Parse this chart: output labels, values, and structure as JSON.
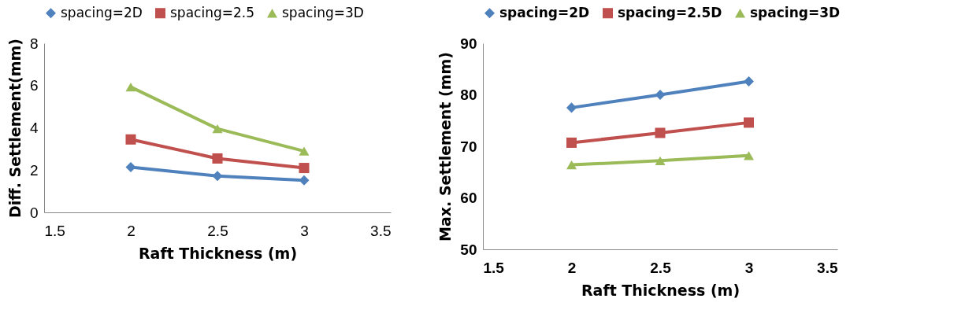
{
  "chart_data": [
    {
      "type": "line",
      "xlabel": "Raft Thickness (m)",
      "ylabel": "Diff. Settlement(mm)",
      "x": [
        2,
        2.5,
        3
      ],
      "xlim": [
        1.5,
        3.5
      ],
      "xticks": [
        1.5,
        2,
        2.5,
        3,
        3.5
      ],
      "ylim": [
        0,
        8
      ],
      "yticks": [
        0,
        2,
        4,
        6,
        8
      ],
      "grid": false,
      "legend": "top",
      "series": [
        {
          "name": "spacing=2D",
          "color": "#4f81bd",
          "marker": "diamond",
          "values": [
            2.14,
            1.72,
            1.52
          ]
        },
        {
          "name": "spacing=2.5",
          "color": "#c0504d",
          "marker": "square",
          "values": [
            3.45,
            2.55,
            2.1
          ]
        },
        {
          "name": "spacing=3D",
          "color": "#9bbb59",
          "marker": "triangle",
          "values": [
            5.93,
            3.96,
            2.9
          ]
        }
      ]
    },
    {
      "type": "line",
      "xlabel": "Raft Thickness (m)",
      "ylabel": "Max. Settlement (mm)",
      "x": [
        2,
        2.5,
        3
      ],
      "xlim": [
        1.5,
        3.5
      ],
      "xticks": [
        1.5,
        2,
        2.5,
        3,
        3.5
      ],
      "ylim": [
        50,
        90
      ],
      "yticks": [
        50,
        60,
        70,
        80,
        90
      ],
      "grid": false,
      "legend": "top",
      "series": [
        {
          "name": "spacing=2D",
          "color": "#4f81bd",
          "marker": "diamond",
          "values": [
            77.5,
            80.0,
            82.6
          ]
        },
        {
          "name": "spacing=2.5D",
          "color": "#c0504d",
          "marker": "square",
          "values": [
            70.7,
            72.6,
            74.6
          ]
        },
        {
          "name": "spacing=3D",
          "color": "#9bbb59",
          "marker": "triangle",
          "values": [
            66.4,
            67.2,
            68.2
          ]
        }
      ]
    }
  ]
}
